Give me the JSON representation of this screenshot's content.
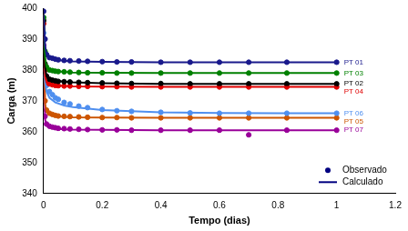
{
  "chart_data": {
    "type": "scatter",
    "x_label": "Tempo (dias)",
    "y_label": "Carga (m)",
    "xlim": [
      0,
      1.2
    ],
    "xticks": [
      0,
      0.2,
      0.4,
      0.6,
      0.8,
      1,
      1.2
    ],
    "ylim": [
      340,
      400
    ],
    "yticks": [
      340,
      350,
      360,
      370,
      380,
      390,
      400
    ],
    "grid": false,
    "legend": "lower right",
    "legend_entries": {
      "observed": {
        "name": "Observado",
        "marker": "circle",
        "color": "#000080"
      },
      "calculated": {
        "name": "Calculado",
        "line_style": "solid",
        "color": "#000080"
      }
    },
    "series": [
      {
        "name": "PT 01",
        "color": "#1a1a8c",
        "marker": "circle",
        "line_style": "solid",
        "x": [
          0,
          0.005,
          0.01,
          0.02,
          0.03,
          0.04,
          0.05,
          0.07,
          0.09,
          0.12,
          0.15,
          0.2,
          0.25,
          0.3,
          0.4,
          0.5,
          0.6,
          0.7,
          0.83,
          1.0
        ],
        "values": [
          399,
          390,
          385,
          384,
          383.8,
          383.5,
          383.3,
          383.1,
          383,
          382.9,
          382.8,
          382.7,
          382.6,
          382.6,
          382.5,
          382.5,
          382.5,
          382.5,
          382.5,
          382.5
        ],
        "calculated": {
          "x": [
            0,
            0.005,
            0.01,
            0.02,
            0.04,
            0.07,
            0.1,
            0.2,
            0.4,
            0.6,
            0.8,
            1.0
          ],
          "values": [
            398,
            388,
            385,
            383.8,
            383.3,
            383,
            382.8,
            382.6,
            382.5,
            382.5,
            382.5,
            382.5
          ]
        }
      },
      {
        "name": "PT 03",
        "color": "#008000",
        "marker": "circle",
        "line_style": "solid",
        "x": [
          0,
          0.005,
          0.01,
          0.02,
          0.03,
          0.04,
          0.05,
          0.07,
          0.09,
          0.12,
          0.15,
          0.2,
          0.25,
          0.3,
          0.4,
          0.5,
          0.6,
          0.7,
          0.83,
          1.0
        ],
        "values": [
          397,
          386,
          381,
          380,
          379.8,
          379.6,
          379.5,
          379.4,
          379.3,
          379.2,
          379.1,
          379.1,
          379,
          379,
          379,
          379,
          379,
          379,
          379,
          379
        ],
        "calculated": {
          "x": [
            0,
            0.005,
            0.01,
            0.02,
            0.04,
            0.07,
            0.1,
            0.2,
            0.4,
            0.6,
            0.8,
            1.0
          ],
          "values": [
            398,
            384,
            381,
            380,
            379.6,
            379.4,
            379.2,
            379.1,
            379,
            379,
            379,
            379
          ]
        }
      },
      {
        "name": "PT 02",
        "color": "#000000",
        "marker": "circle",
        "line_style": "solid",
        "x": [
          0,
          0.005,
          0.01,
          0.02,
          0.03,
          0.04,
          0.05,
          0.07,
          0.09,
          0.12,
          0.15,
          0.2,
          0.25,
          0.3,
          0.4,
          0.5,
          0.6,
          0.7,
          0.83,
          1.0
        ],
        "values": [
          396,
          382,
          378,
          377,
          376.7,
          376.5,
          376.3,
          376.2,
          376.1,
          376,
          375.9,
          375.8,
          375.7,
          375.6,
          375.6,
          375.5,
          375.5,
          375.5,
          375.5,
          375.5
        ],
        "calculated": {
          "x": [
            0,
            0.005,
            0.01,
            0.02,
            0.04,
            0.07,
            0.1,
            0.2,
            0.4,
            0.6,
            0.8,
            1.0
          ],
          "values": [
            398,
            381,
            378,
            377,
            376.5,
            376.2,
            376,
            375.7,
            375.5,
            375.5,
            375.5,
            375.5
          ]
        }
      },
      {
        "name": "PT 04",
        "color": "#e00000",
        "marker": "circle",
        "line_style": "solid",
        "x": [
          0,
          0.005,
          0.01,
          0.02,
          0.03,
          0.04,
          0.05,
          0.07,
          0.09,
          0.12,
          0.15,
          0.2,
          0.25,
          0.3,
          0.4,
          0.5,
          0.6,
          0.7,
          0.83,
          1.0
        ],
        "values": [
          395,
          380,
          376,
          375.5,
          375.2,
          375,
          374.9,
          374.8,
          374.8,
          374.7,
          374.7,
          374.6,
          374.6,
          374.5,
          374.5,
          374.5,
          374.5,
          374.5,
          374.5,
          374.5
        ],
        "calculated": {
          "x": [
            0,
            0.005,
            0.01,
            0.02,
            0.04,
            0.07,
            0.1,
            0.2,
            0.4,
            0.6,
            0.8,
            1.0
          ],
          "values": [
            398,
            378,
            376,
            375.3,
            375,
            374.8,
            374.7,
            374.6,
            374.5,
            374.5,
            374.5,
            374.5
          ]
        }
      },
      {
        "name": "PT 06",
        "color": "#4f8fef",
        "marker": "circle",
        "line_style": "solid",
        "x": [
          0,
          0.005,
          0.01,
          0.02,
          0.03,
          0.04,
          0.05,
          0.07,
          0.09,
          0.12,
          0.15,
          0.2,
          0.25,
          0.3,
          0.4,
          0.5,
          0.6,
          0.7,
          0.83,
          1.0
        ],
        "values": [
          392,
          378,
          375,
          373,
          372,
          371,
          370.5,
          369.5,
          369,
          368.3,
          367.8,
          367.2,
          366.8,
          366.6,
          366.3,
          366.1,
          366,
          366,
          366,
          366
        ],
        "calculated": {
          "x": [
            0,
            0.005,
            0.01,
            0.02,
            0.04,
            0.07,
            0.1,
            0.2,
            0.4,
            0.6,
            0.8,
            1.0
          ],
          "values": [
            398,
            376,
            373,
            371,
            369.5,
            368.5,
            368,
            367,
            366.3,
            366.1,
            366,
            366
          ]
        }
      },
      {
        "name": "PT 05",
        "color": "#cc5500",
        "marker": "circle",
        "line_style": "solid",
        "x": [
          0,
          0.005,
          0.01,
          0.02,
          0.03,
          0.04,
          0.05,
          0.07,
          0.09,
          0.12,
          0.15,
          0.2,
          0.25,
          0.3,
          0.4,
          0.5,
          0.6,
          0.7,
          0.83,
          1.0
        ],
        "values": [
          390,
          370,
          367,
          366,
          365.6,
          365.3,
          365.1,
          365,
          364.9,
          364.8,
          364.7,
          364.6,
          364.6,
          364.5,
          364.5,
          364.5,
          364.5,
          364.5,
          364.5,
          364.5
        ],
        "calculated": {
          "x": [
            0,
            0.005,
            0.01,
            0.02,
            0.04,
            0.07,
            0.1,
            0.2,
            0.4,
            0.6,
            0.8,
            1.0
          ],
          "values": [
            398,
            369,
            366.5,
            365.5,
            365,
            364.8,
            364.7,
            364.6,
            364.5,
            364.5,
            364.5,
            364.5
          ]
        }
      },
      {
        "name": "PT 07",
        "color": "#990099",
        "marker": "circle",
        "line_style": "solid",
        "x": [
          0,
          0.005,
          0.01,
          0.02,
          0.03,
          0.04,
          0.05,
          0.07,
          0.09,
          0.12,
          0.15,
          0.2,
          0.25,
          0.3,
          0.4,
          0.5,
          0.6,
          0.7,
          0.83,
          1.0
        ],
        "values": [
          388,
          365,
          362.5,
          361.8,
          361.5,
          361.3,
          361.1,
          361,
          360.9,
          360.8,
          360.7,
          360.6,
          360.6,
          360.5,
          360.5,
          360.5,
          360.5,
          359,
          360.5,
          360.5
        ],
        "calculated": {
          "x": [
            0,
            0.005,
            0.01,
            0.02,
            0.04,
            0.07,
            0.1,
            0.2,
            0.4,
            0.6,
            0.8,
            1.0
          ],
          "values": [
            398,
            364,
            362,
            361.3,
            361,
            360.8,
            360.7,
            360.6,
            360.5,
            360.5,
            360.5,
            360.5
          ]
        }
      }
    ]
  }
}
